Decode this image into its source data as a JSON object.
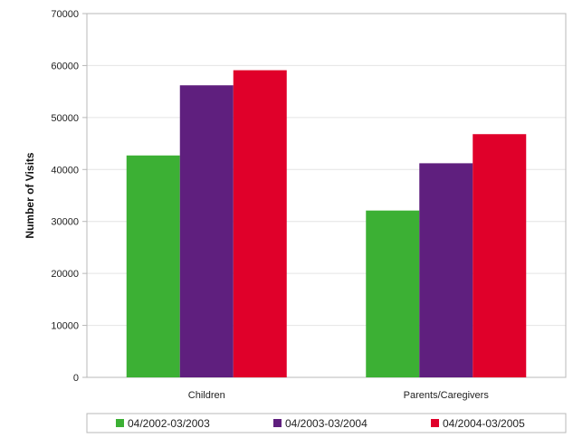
{
  "chart_data": {
    "type": "bar",
    "ylabel": "Number of Visits",
    "xlabel": "",
    "title": "",
    "ylim": [
      0,
      70000
    ],
    "yticks": [
      0,
      10000,
      20000,
      30000,
      40000,
      50000,
      60000,
      70000
    ],
    "categories": [
      "Children",
      "Parents/Caregivers"
    ],
    "series": [
      {
        "name": "04/2002-03/2003",
        "color": "#3cb034",
        "values": [
          42700,
          32100
        ]
      },
      {
        "name": "04/2003-03/2004",
        "color": "#5f1f7e",
        "values": [
          56200,
          41200
        ]
      },
      {
        "name": "04/2004-03/2005",
        "color": "#e0002a",
        "values": [
          59100,
          46800
        ]
      }
    ],
    "grid": true,
    "legend_position": "bottom"
  }
}
